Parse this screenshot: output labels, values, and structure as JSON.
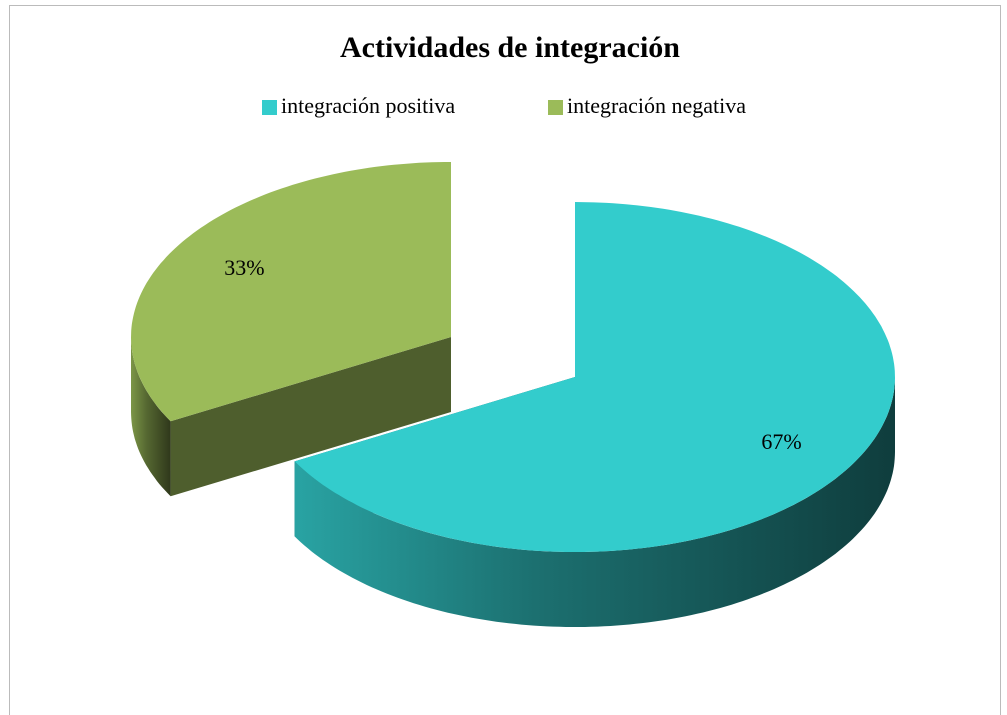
{
  "chart_data": {
    "type": "pie",
    "title": "Actividades de integración",
    "categories": [
      "integración positiva",
      "integración negativa"
    ],
    "values": [
      67,
      33
    ],
    "value_labels": [
      "67%",
      "33%"
    ],
    "colors": [
      "#33CCCC",
      "#9BBB59"
    ],
    "legend": "top"
  }
}
